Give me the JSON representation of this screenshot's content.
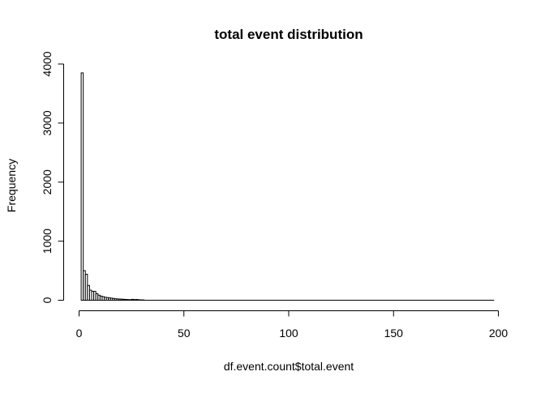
{
  "chart_data": {
    "type": "bar",
    "subtype": "histogram",
    "title": "total event distribution",
    "xlabel": "df.event.count$total.event",
    "ylabel": "Frequency",
    "xlim": [
      0,
      200
    ],
    "ylim": [
      0,
      4000
    ],
    "x_ticks": [
      0,
      50,
      100,
      150,
      200
    ],
    "x_tick_labels": [
      "0",
      "50",
      "100",
      "150",
      "200"
    ],
    "y_ticks": [
      0,
      1000,
      2000,
      3000,
      4000
    ],
    "y_tick_labels": [
      "0",
      "1000",
      "2000",
      "3000",
      "4000"
    ],
    "bin_width": 1,
    "bin_range": [
      1,
      198
    ],
    "bars": [
      {
        "start": 1,
        "end": 2,
        "count": 3850
      },
      {
        "start": 2,
        "end": 3,
        "count": 500
      },
      {
        "start": 3,
        "end": 4,
        "count": 440
      },
      {
        "start": 4,
        "end": 5,
        "count": 250
      },
      {
        "start": 5,
        "end": 6,
        "count": 170
      },
      {
        "start": 6,
        "end": 7,
        "count": 150
      },
      {
        "start": 7,
        "end": 8,
        "count": 150
      },
      {
        "start": 8,
        "end": 9,
        "count": 110
      },
      {
        "start": 9,
        "end": 10,
        "count": 85
      },
      {
        "start": 10,
        "end": 11,
        "count": 70
      },
      {
        "start": 11,
        "end": 12,
        "count": 60
      },
      {
        "start": 12,
        "end": 13,
        "count": 50
      },
      {
        "start": 13,
        "end": 14,
        "count": 45
      },
      {
        "start": 14,
        "end": 15,
        "count": 40
      },
      {
        "start": 15,
        "end": 16,
        "count": 35
      },
      {
        "start": 16,
        "end": 17,
        "count": 30
      },
      {
        "start": 17,
        "end": 18,
        "count": 25
      },
      {
        "start": 18,
        "end": 19,
        "count": 22
      },
      {
        "start": 19,
        "end": 20,
        "count": 20
      },
      {
        "start": 20,
        "end": 21,
        "count": 18
      },
      {
        "start": 21,
        "end": 22,
        "count": 15
      },
      {
        "start": 22,
        "end": 23,
        "count": 12
      },
      {
        "start": 23,
        "end": 24,
        "count": 10
      },
      {
        "start": 24,
        "end": 25,
        "count": 8
      },
      {
        "start": 25,
        "end": 26,
        "count": 15
      },
      {
        "start": 26,
        "end": 27,
        "count": 10
      },
      {
        "start": 27,
        "end": 28,
        "count": 12
      },
      {
        "start": 28,
        "end": 29,
        "count": 8
      },
      {
        "start": 29,
        "end": 30,
        "count": 6
      },
      {
        "start": 30,
        "end": 31,
        "count": 5
      }
    ],
    "bar_fill": "#ffffff",
    "bar_stroke": "#000000",
    "grid": false,
    "legend": "none"
  }
}
